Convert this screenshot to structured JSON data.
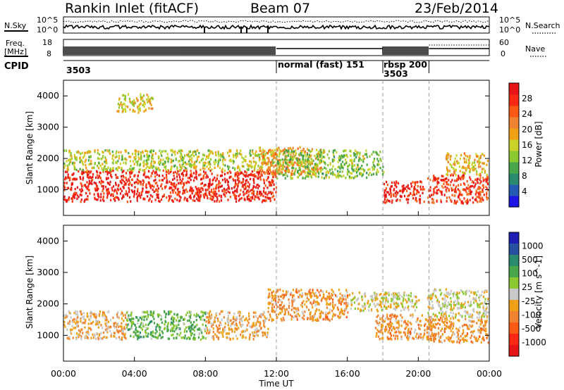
{
  "header": {
    "site": "Rankin Inlet (fitACF)",
    "beam": "Beam 07",
    "date": "23/Feb/2014"
  },
  "top_panels": {
    "nsky_label": "N.Sky",
    "nsky_ticks": [
      "10^5",
      "10^0"
    ],
    "nsearch_label": "N.Search",
    "nsearch_ticks": [
      "10^5",
      "10^0"
    ],
    "freq_label_1": "Freq.",
    "freq_label_2": "[MHz]",
    "freq_ticks": [
      "18",
      "8"
    ],
    "nave_label": "Nave",
    "nave_ticks": [
      "60",
      "0"
    ],
    "cpid_label": "CPID",
    "cpid_segments": [
      {
        "id": "3503",
        "start": 0.0,
        "end": 12.0,
        "text": "3503"
      },
      {
        "id": "normal",
        "start": 12.0,
        "end": 18.0,
        "text": "normal (fast) 151"
      },
      {
        "id": "rbsp",
        "start": 18.0,
        "end": 20.6,
        "text": "rbsp 200"
      },
      {
        "id": "3503b",
        "start": 18.0,
        "end": 20.6,
        "text": "3503"
      }
    ]
  },
  "panels": {
    "power": {
      "ylabel": "Slant Range [km]",
      "cbar_label": "Power [dB]",
      "cbar_ticks": [
        "4",
        "8",
        "12",
        "16",
        "20",
        "24",
        "28"
      ],
      "cbar_colors": [
        "#1e14e6",
        "#245ab4",
        "#2a8a6e",
        "#4aa64a",
        "#8cc832",
        "#c8d228",
        "#f0a014",
        "#f08232",
        "#ff5a14",
        "#ff2814",
        "#e61414"
      ]
    },
    "velocity": {
      "ylabel": "Slant Range [km]",
      "cbar_label": "Velocity [m s^-1]",
      "cbar_ticks": [
        "1000",
        "500",
        "100",
        "25",
        "-25",
        "-100",
        "-500",
        "-1000"
      ],
      "cbar_colors": [
        "#1e1eb4",
        "#2850a0",
        "#2a8a6e",
        "#4aa64a",
        "#8cc832",
        "#c8c8c8",
        "#f0a014",
        "#f08232",
        "#ff5a14",
        "#ff2814",
        "#e61414"
      ]
    }
  },
  "xaxis": {
    "label": "Time UT",
    "ticks": [
      "00:00",
      "04:00",
      "08:00",
      "12:00",
      "16:00",
      "20:00",
      "00:00"
    ]
  },
  "chart_data": {
    "type": "heatmap",
    "title": "Rankin Inlet (fitACF)",
    "subtitle": "Beam 07",
    "date": "23/Feb/2014",
    "xlabel": "Time UT",
    "ylabel": "Slant Range [km]",
    "xlim": [
      0,
      24
    ],
    "ylim": [
      180,
      4500
    ],
    "y_ticks": [
      1000,
      2000,
      3000,
      4000
    ],
    "mode_changes_ut": [
      12.0,
      18.0,
      20.6
    ],
    "power_scale_db": [
      0,
      30
    ],
    "velocity_scale_ms": [
      -1000,
      1000
    ],
    "power_regions": [
      {
        "t0": 0.0,
        "t1": 12.0,
        "r0": 650,
        "r1": 1650,
        "db": 28
      },
      {
        "t0": 0.0,
        "t1": 12.0,
        "r0": 1650,
        "r1": 2300,
        "db": 14
      },
      {
        "t0": 11.0,
        "t1": 14.5,
        "r0": 1500,
        "r1": 2400,
        "db": 20
      },
      {
        "t0": 12.0,
        "t1": 18.0,
        "r0": 1400,
        "r1": 2300,
        "db": 12
      },
      {
        "t0": 18.0,
        "t1": 20.3,
        "r0": 620,
        "r1": 1300,
        "db": 28
      },
      {
        "t0": 20.5,
        "t1": 23.9,
        "r0": 600,
        "r1": 1500,
        "db": 26
      },
      {
        "t0": 21.5,
        "t1": 23.9,
        "r0": 1500,
        "r1": 2200,
        "db": 18
      },
      {
        "t0": 3.0,
        "t1": 5.0,
        "r0": 3500,
        "r1": 4100,
        "db": 16
      }
    ],
    "velocity_regions": [
      {
        "t0": 0.0,
        "t1": 3.5,
        "r0": 900,
        "r1": 1800,
        "v": -200
      },
      {
        "t0": 3.5,
        "t1": 8.0,
        "r0": 900,
        "r1": 1800,
        "v": 300
      },
      {
        "t0": 8.0,
        "t1": 11.5,
        "r0": 900,
        "r1": 1800,
        "v": -200
      },
      {
        "t0": 11.5,
        "t1": 16.0,
        "r0": 1500,
        "r1": 2500,
        "v": -300
      },
      {
        "t0": 16.0,
        "t1": 20.0,
        "r0": 1800,
        "r1": 2400,
        "v": 0
      },
      {
        "t0": 17.5,
        "t1": 21.0,
        "r0": 900,
        "r1": 1700,
        "v": -300
      },
      {
        "t0": 20.5,
        "t1": 23.9,
        "r0": 800,
        "r1": 1600,
        "v": -300
      },
      {
        "t0": 20.5,
        "t1": 23.9,
        "r0": 1600,
        "r1": 2500,
        "v": 0
      }
    ]
  }
}
